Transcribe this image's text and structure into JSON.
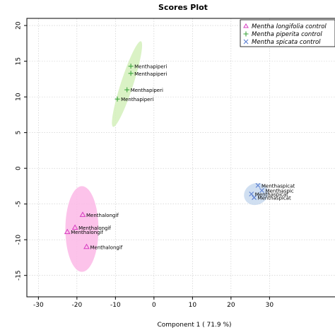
{
  "chart_data": {
    "type": "scatter",
    "title": "Scores Plot",
    "xlabel": "Component 1 ( 71.9 %)",
    "ylabel": "",
    "xlim": [
      -33,
      47
    ],
    "ylim": [
      -18,
      21
    ],
    "x_ticks": [
      -30,
      -20,
      -10,
      0,
      10,
      20,
      30
    ],
    "y_ticks": [
      20,
      15,
      10,
      5,
      0,
      -5,
      -10,
      -15
    ],
    "grid": true,
    "legend_position": "top-right",
    "series": [
      {
        "name": "Mentha longifolia control",
        "marker": "triangle",
        "color": "#d63cc0",
        "ellipse_color": "#fbb8e6",
        "ellipse": {
          "cx": -18.7,
          "cy": -8.5,
          "rx": 4.3,
          "ry": 6,
          "angle": 0
        },
        "points": [
          {
            "x": -18.5,
            "y": -6.5,
            "label": "Menthalongif"
          },
          {
            "x": -20.5,
            "y": -8.3,
            "label": "Menthalongif"
          },
          {
            "x": -22.5,
            "y": -8.9,
            "label": "Menthalongif"
          },
          {
            "x": -17.5,
            "y": -11,
            "label": "Menthalongif"
          }
        ]
      },
      {
        "name": "Mentha piperita control",
        "marker": "plus",
        "color": "#3ba33b",
        "ellipse_color": "#d3f0bb",
        "ellipse": {
          "cx": -7,
          "cy": 11.8,
          "rx": 1.6,
          "ry": 6.3,
          "angle": 18
        },
        "points": [
          {
            "x": -6,
            "y": 14.3,
            "label": "Menthapiperi"
          },
          {
            "x": -6,
            "y": 13.3,
            "label": "Menthapiperi"
          },
          {
            "x": -7,
            "y": 11,
            "label": "Menthapiperi"
          },
          {
            "x": -9.5,
            "y": 9.7,
            "label": "Menthapiperi"
          }
        ]
      },
      {
        "name": "Mentha spicata control",
        "marker": "cross",
        "color": "#5b7fd1",
        "ellipse_color": "#c8d9ef",
        "ellipse": {
          "cx": 26.5,
          "cy": -3.6,
          "rx": 3.2,
          "ry": 1.5,
          "angle": -25
        },
        "points": [
          {
            "x": 27,
            "y": -2.4,
            "label": "Menthaspicat"
          },
          {
            "x": 28,
            "y": -3.1,
            "label": "Menthaspic"
          },
          {
            "x": 25.3,
            "y": -3.6,
            "label": "Menthaspicat"
          },
          {
            "x": 26,
            "y": -4.1,
            "label": "Menthaspicat"
          }
        ]
      }
    ]
  }
}
